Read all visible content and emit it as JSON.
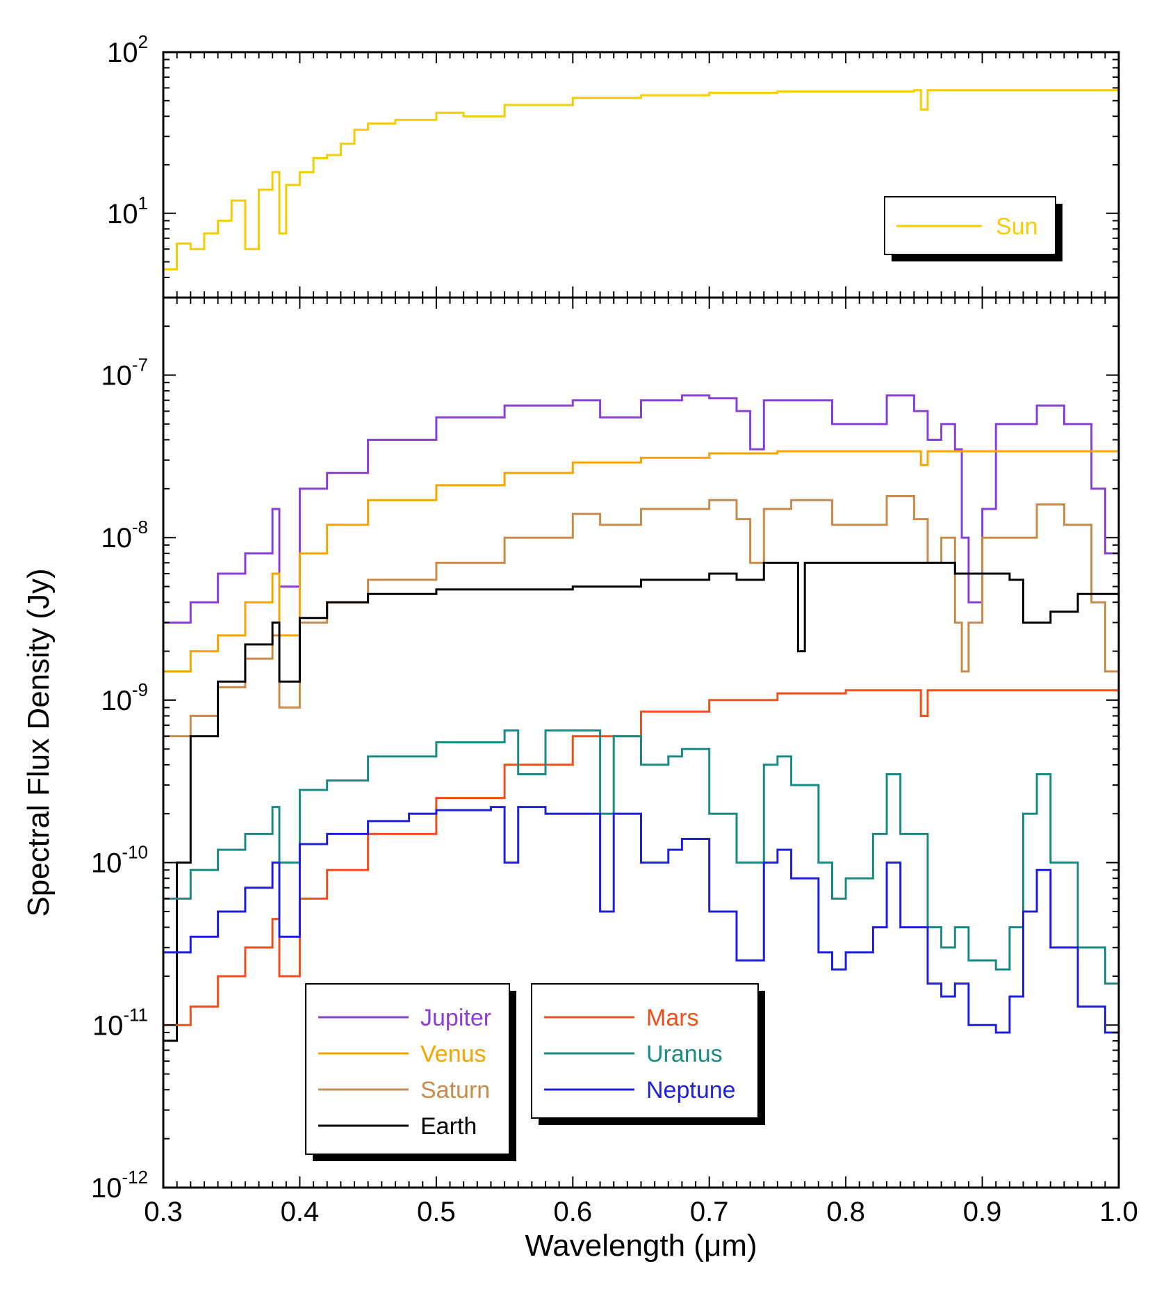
{
  "chart_data": [
    {
      "type": "line",
      "panel": "top",
      "yscale": "log",
      "xlim": [
        0.3,
        1.0
      ],
      "ylim": [
        3,
        100
      ],
      "ytick_labels": [
        {
          "base": "10",
          "exp": "1",
          "value": 10
        },
        {
          "base": "10",
          "exp": "2",
          "value": 100
        }
      ],
      "legend": {
        "placement": "right"
      },
      "series": [
        {
          "name": "Sun",
          "color": "#f5cd00",
          "x": [
            0.3,
            0.31,
            0.32,
            0.33,
            0.34,
            0.35,
            0.36,
            0.37,
            0.38,
            0.385,
            0.39,
            0.4,
            0.41,
            0.42,
            0.43,
            0.44,
            0.45,
            0.47,
            0.5,
            0.52,
            0.55,
            0.6,
            0.65,
            0.7,
            0.75,
            0.8,
            0.85,
            0.855,
            0.86,
            0.9,
            0.95,
            1.0
          ],
          "y": [
            4.5,
            6.5,
            6.0,
            7.5,
            9.0,
            12,
            6.0,
            14,
            18,
            7.5,
            15,
            18,
            22,
            23,
            27,
            33,
            36,
            38,
            42,
            40,
            47,
            52,
            54,
            56,
            57,
            57,
            58,
            44,
            58,
            58,
            58,
            58
          ]
        }
      ]
    },
    {
      "type": "line",
      "panel": "bottom",
      "yscale": "log",
      "xlim": [
        0.3,
        1.0
      ],
      "ylim": [
        1e-12,
        3e-07
      ],
      "xlabel": "Wavelength (μm)",
      "ylabel": "Spectral Flux Density (Jy)",
      "xtick_labels": [
        "0.3",
        "0.4",
        "0.5",
        "0.6",
        "0.7",
        "0.8",
        "0.9",
        "1.0"
      ],
      "xticks": [
        0.3,
        0.4,
        0.5,
        0.6,
        0.7,
        0.8,
        0.9,
        1.0
      ],
      "ytick_labels": [
        {
          "base": "10",
          "exp": "-12",
          "value": 1e-12
        },
        {
          "base": "10",
          "exp": "-11",
          "value": 1e-11
        },
        {
          "base": "10",
          "exp": "-10",
          "value": 1e-10
        },
        {
          "base": "10",
          "exp": "-9",
          "value": 1e-09
        },
        {
          "base": "10",
          "exp": "-8",
          "value": 1e-08
        },
        {
          "base": "10",
          "exp": "-7",
          "value": 1e-07
        }
      ],
      "legend": {
        "placement": "bottom-left, two boxes"
      },
      "series": [
        {
          "name": "Jupiter",
          "color": "#8b3fd9",
          "x": [
            0.3,
            0.32,
            0.34,
            0.36,
            0.38,
            0.385,
            0.4,
            0.42,
            0.45,
            0.5,
            0.55,
            0.6,
            0.62,
            0.65,
            0.68,
            0.7,
            0.72,
            0.73,
            0.74,
            0.76,
            0.79,
            0.83,
            0.85,
            0.86,
            0.87,
            0.88,
            0.885,
            0.89,
            0.9,
            0.91,
            0.94,
            0.96,
            0.98,
            0.99,
            1.0
          ],
          "y": [
            3e-09,
            4e-09,
            6e-09,
            8e-09,
            1.5e-08,
            5e-09,
            2e-08,
            2.5e-08,
            4e-08,
            5.5e-08,
            6.5e-08,
            7e-08,
            5.5e-08,
            7e-08,
            7.5e-08,
            7.2e-08,
            6e-08,
            3.5e-08,
            7e-08,
            7e-08,
            5e-08,
            7.5e-08,
            6e-08,
            4e-08,
            5e-08,
            3.5e-08,
            1e-08,
            4e-09,
            1.5e-08,
            5e-08,
            6.5e-08,
            5e-08,
            2e-08,
            8e-09,
            1.5e-08
          ]
        },
        {
          "name": "Venus",
          "color": "#f7a400",
          "x": [
            0.3,
            0.32,
            0.34,
            0.36,
            0.38,
            0.385,
            0.4,
            0.42,
            0.45,
            0.5,
            0.55,
            0.6,
            0.65,
            0.7,
            0.75,
            0.8,
            0.85,
            0.855,
            0.86,
            0.9,
            0.95,
            1.0
          ],
          "y": [
            1.5e-09,
            2e-09,
            2.5e-09,
            4e-09,
            6e-09,
            2.5e-09,
            8e-09,
            1.2e-08,
            1.7e-08,
            2.1e-08,
            2.5e-08,
            2.9e-08,
            3.1e-08,
            3.3e-08,
            3.4e-08,
            3.4e-08,
            3.4e-08,
            2.8e-08,
            3.4e-08,
            3.4e-08,
            3.4e-08,
            3.4e-08
          ]
        },
        {
          "name": "Saturn",
          "color": "#c98a4b",
          "x": [
            0.3,
            0.32,
            0.34,
            0.36,
            0.38,
            0.385,
            0.4,
            0.42,
            0.45,
            0.5,
            0.55,
            0.6,
            0.62,
            0.65,
            0.7,
            0.72,
            0.73,
            0.74,
            0.76,
            0.79,
            0.83,
            0.85,
            0.86,
            0.87,
            0.88,
            0.885,
            0.89,
            0.9,
            0.94,
            0.96,
            0.98,
            0.99,
            1.0
          ],
          "y": [
            6e-10,
            8e-10,
            1.2e-09,
            1.8e-09,
            2.5e-09,
            9e-10,
            3e-09,
            4e-09,
            5.5e-09,
            7e-09,
            1e-08,
            1.4e-08,
            1.2e-08,
            1.5e-08,
            1.7e-08,
            1.3e-08,
            7e-09,
            1.5e-08,
            1.7e-08,
            1.2e-08,
            1.8e-08,
            1.3e-08,
            7e-09,
            1e-08,
            3e-09,
            1.5e-09,
            3e-09,
            1e-08,
            1.6e-08,
            1.2e-08,
            4e-09,
            1.5e-09,
            3e-09
          ]
        },
        {
          "name": "Earth",
          "color": "#000000",
          "x": [
            0.3,
            0.31,
            0.32,
            0.34,
            0.36,
            0.38,
            0.385,
            0.4,
            0.42,
            0.45,
            0.5,
            0.55,
            0.6,
            0.65,
            0.7,
            0.72,
            0.74,
            0.76,
            0.765,
            0.77,
            0.8,
            0.85,
            0.88,
            0.9,
            0.92,
            0.93,
            0.95,
            0.97,
            1.0
          ],
          "y": [
            8e-12,
            1e-10,
            6e-10,
            1.3e-09,
            2.2e-09,
            3e-09,
            1.3e-09,
            3.2e-09,
            4e-09,
            4.5e-09,
            4.8e-09,
            4.8e-09,
            5e-09,
            5.5e-09,
            6e-09,
            5.5e-09,
            7e-09,
            7e-09,
            2e-09,
            7e-09,
            7e-09,
            7e-09,
            6e-09,
            6e-09,
            5.5e-09,
            3e-09,
            3.5e-09,
            4.5e-09,
            7e-09
          ]
        },
        {
          "name": "Mars",
          "color": "#f04f1a",
          "x": [
            0.3,
            0.32,
            0.34,
            0.36,
            0.38,
            0.385,
            0.4,
            0.42,
            0.45,
            0.5,
            0.55,
            0.6,
            0.65,
            0.7,
            0.75,
            0.8,
            0.85,
            0.855,
            0.86,
            0.9,
            0.95,
            1.0
          ],
          "y": [
            1e-11,
            1.3e-11,
            2e-11,
            3e-11,
            4.5e-11,
            2e-11,
            6e-11,
            9e-11,
            1.5e-10,
            2.5e-10,
            4e-10,
            6e-10,
            8.5e-10,
            1e-09,
            1.1e-09,
            1.15e-09,
            1.15e-09,
            8e-10,
            1.15e-09,
            1.15e-09,
            1.15e-09,
            1.15e-09
          ]
        },
        {
          "name": "Uranus",
          "color": "#1a8a84",
          "x": [
            0.3,
            0.32,
            0.34,
            0.36,
            0.38,
            0.385,
            0.4,
            0.42,
            0.45,
            0.5,
            0.55,
            0.56,
            0.58,
            0.6,
            0.62,
            0.63,
            0.65,
            0.67,
            0.68,
            0.7,
            0.72,
            0.74,
            0.75,
            0.76,
            0.78,
            0.79,
            0.8,
            0.82,
            0.83,
            0.84,
            0.86,
            0.87,
            0.88,
            0.89,
            0.91,
            0.92,
            0.93,
            0.94,
            0.95,
            0.97,
            0.99,
            1.0
          ],
          "y": [
            6e-11,
            9e-11,
            1.2e-10,
            1.5e-10,
            2.2e-10,
            1e-10,
            2.8e-10,
            3.2e-10,
            4.5e-10,
            5.5e-10,
            6.5e-10,
            3.5e-10,
            6.5e-10,
            6.5e-10,
            2e-10,
            6e-10,
            4e-10,
            4.5e-10,
            5e-10,
            2e-10,
            1e-10,
            4e-10,
            4.5e-10,
            3e-10,
            1e-10,
            6e-11,
            8e-11,
            1.5e-10,
            3.5e-10,
            1.5e-10,
            4e-11,
            3e-11,
            4e-11,
            2.5e-11,
            2.2e-11,
            4e-11,
            2e-10,
            3.5e-10,
            1e-10,
            3e-11,
            1.8e-11,
            1.6e-11
          ]
        },
        {
          "name": "Neptune",
          "color": "#1f1fe0",
          "x": [
            0.3,
            0.32,
            0.34,
            0.36,
            0.38,
            0.385,
            0.4,
            0.42,
            0.45,
            0.48,
            0.5,
            0.54,
            0.55,
            0.56,
            0.58,
            0.6,
            0.62,
            0.63,
            0.65,
            0.67,
            0.68,
            0.7,
            0.72,
            0.74,
            0.75,
            0.76,
            0.78,
            0.79,
            0.8,
            0.82,
            0.83,
            0.84,
            0.86,
            0.87,
            0.88,
            0.89,
            0.91,
            0.92,
            0.93,
            0.94,
            0.95,
            0.97,
            0.99,
            1.0
          ],
          "y": [
            2.8e-11,
            3.5e-11,
            5e-11,
            7e-11,
            1e-10,
            3.5e-11,
            1.3e-10,
            1.5e-10,
            1.8e-10,
            2e-10,
            2.1e-10,
            2.2e-10,
            1e-10,
            2.2e-10,
            2e-10,
            2e-10,
            5e-11,
            2e-10,
            1e-10,
            1.2e-10,
            1.4e-10,
            5e-11,
            2.5e-11,
            1e-10,
            1.2e-10,
            8e-11,
            2.8e-11,
            2.2e-11,
            2.8e-11,
            4e-11,
            1e-10,
            4e-11,
            1.8e-11,
            1.5e-11,
            1.8e-11,
            1e-11,
            9e-12,
            1.5e-11,
            5e-11,
            9e-11,
            3e-11,
            1.3e-11,
            9e-12,
            8e-12
          ]
        }
      ]
    }
  ]
}
